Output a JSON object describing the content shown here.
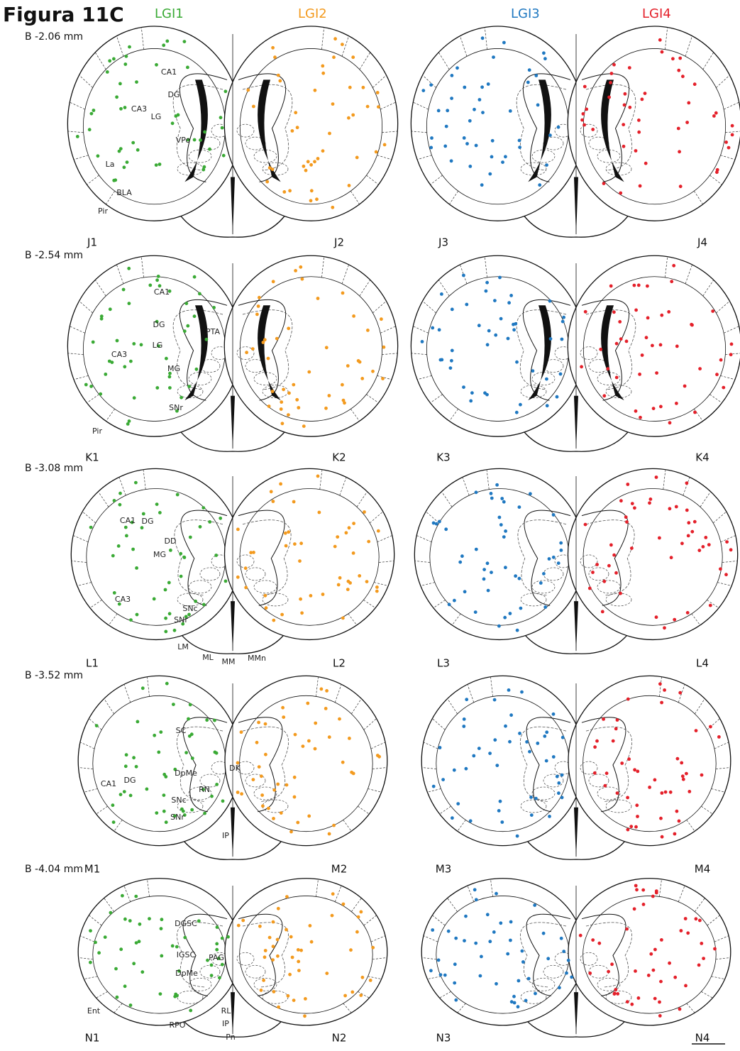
{
  "header": {
    "title": "Figura 11C",
    "groups": [
      {
        "label": "LGI1",
        "color": "#3aaa35"
      },
      {
        "label": "LGI2",
        "color": "#f39a1e"
      },
      {
        "label": "LGI3",
        "color": "#1f78c1"
      },
      {
        "label": "LGI4",
        "color": "#e4202a"
      }
    ]
  },
  "sections": [
    {
      "bregma": "B -2.06 mm",
      "panels": [
        "J1",
        "J2",
        "J3",
        "J4"
      ],
      "regions": [
        "CA1",
        "DG",
        "CA3",
        "LG",
        "VPo",
        "La",
        "BLA",
        "Pir"
      ]
    },
    {
      "bregma": "B -2.54 mm",
      "panels": [
        "K1",
        "K2",
        "K3",
        "K4"
      ],
      "regions": [
        "CA1",
        "DG",
        "PTA",
        "CA3",
        "LG",
        "MG",
        "SNr",
        "Pir"
      ]
    },
    {
      "bregma": "B -3.08 mm",
      "panels": [
        "L1",
        "L2",
        "L3",
        "L4"
      ],
      "regions": [
        "CA1",
        "DG",
        "DD",
        "MG",
        "CA3",
        "SNc",
        "SNr",
        "LM",
        "ML",
        "MM",
        "MMn"
      ]
    },
    {
      "bregma": "B -3.52 mm",
      "panels": [
        "M1",
        "M2",
        "M3",
        "M4"
      ],
      "regions": [
        "SC",
        "DpMe",
        "DK",
        "RN",
        "CA1",
        "DG",
        "SNc",
        "SNr",
        "IP"
      ]
    },
    {
      "bregma": "B -4.04 mm",
      "panels": [
        "N1",
        "N2",
        "N3",
        "N4"
      ],
      "regions": [
        "DGSC",
        "IGSC",
        "PAG",
        "DpMe",
        "Ent",
        "RLi",
        "RPO",
        "IP",
        "Pn"
      ]
    }
  ]
}
